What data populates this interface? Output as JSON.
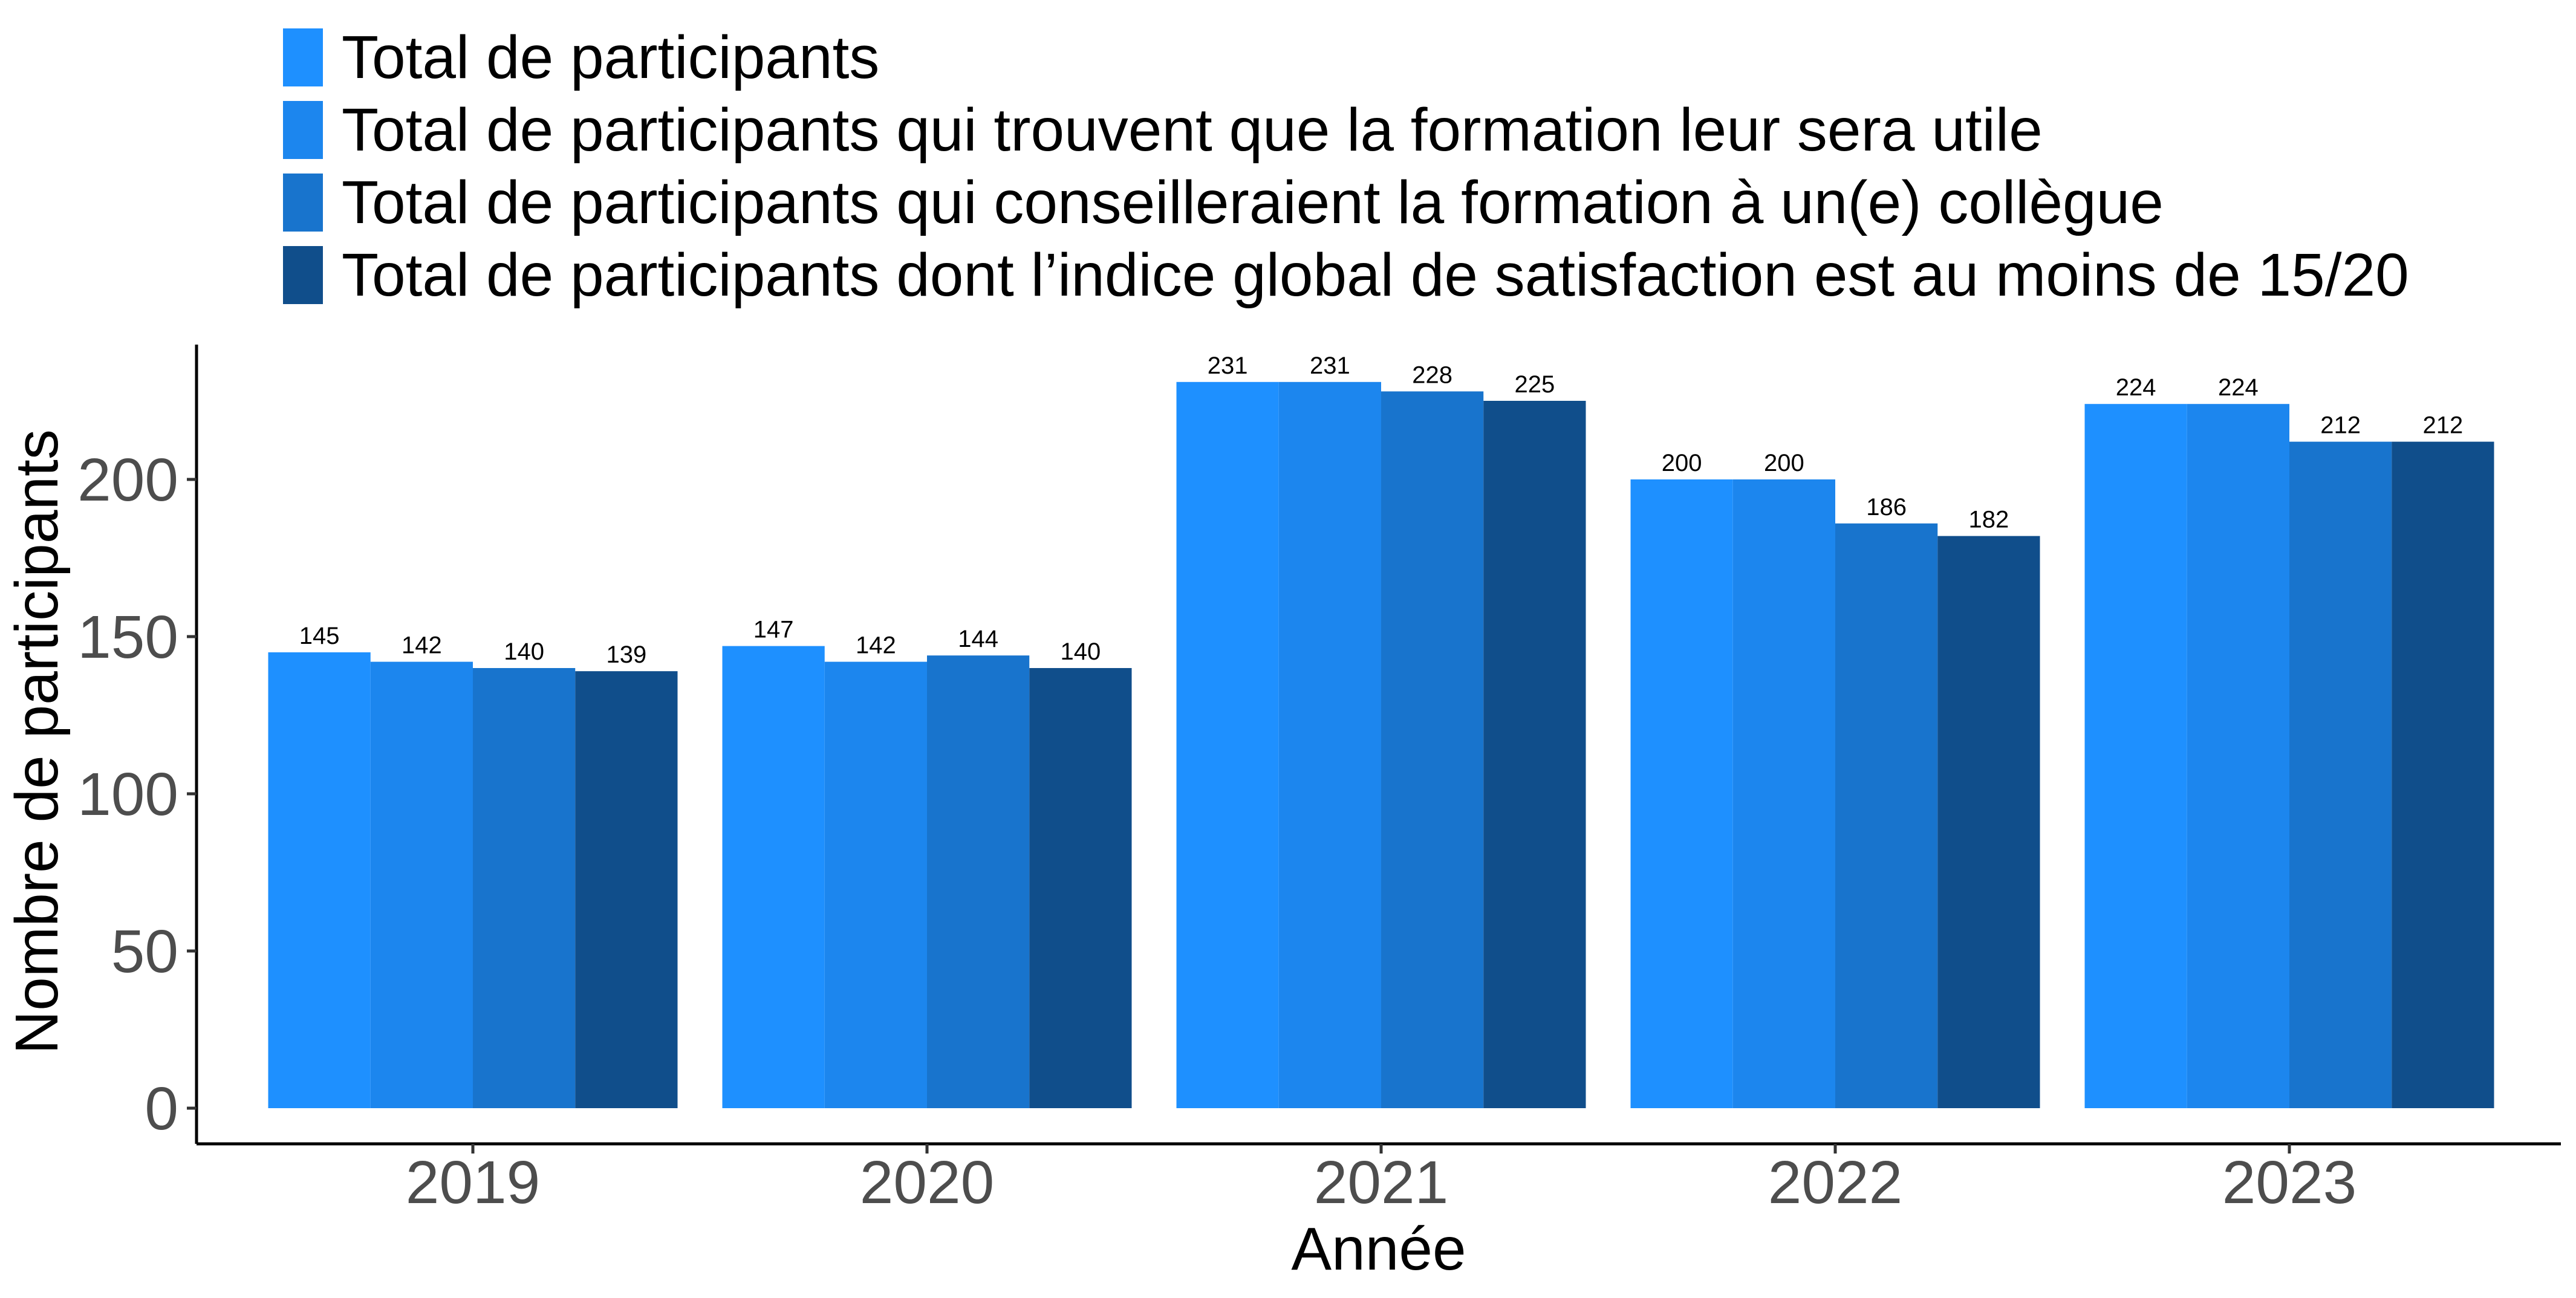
{
  "chart_data": {
    "type": "bar",
    "title": "",
    "xlabel": "Année",
    "ylabel": "Nombre de participants",
    "ylim": [
      0,
      240
    ],
    "yticks": [
      0,
      50,
      100,
      150,
      200
    ],
    "grid": false,
    "legend_position": "top",
    "categories": [
      "2019",
      "2020",
      "2021",
      "2022",
      "2023"
    ],
    "series": [
      {
        "name": "Total de participants",
        "color": "#1e90ff",
        "values": [
          145,
          147,
          231,
          200,
          224
        ]
      },
      {
        "name": "Total de participants qui trouvent que la formation leur sera utile",
        "color": "#1c86ee",
        "values": [
          142,
          142,
          231,
          200,
          224
        ]
      },
      {
        "name": "Total de participants qui conseilleraient la formation à un(e) collègue",
        "color": "#1874cd",
        "values": [
          140,
          144,
          228,
          186,
          212
        ]
      },
      {
        "name": "Total de participants dont l’indice global de satisfaction est au moins de 15/20",
        "color": "#104e8b",
        "values": [
          139,
          140,
          225,
          182,
          212
        ]
      }
    ]
  }
}
